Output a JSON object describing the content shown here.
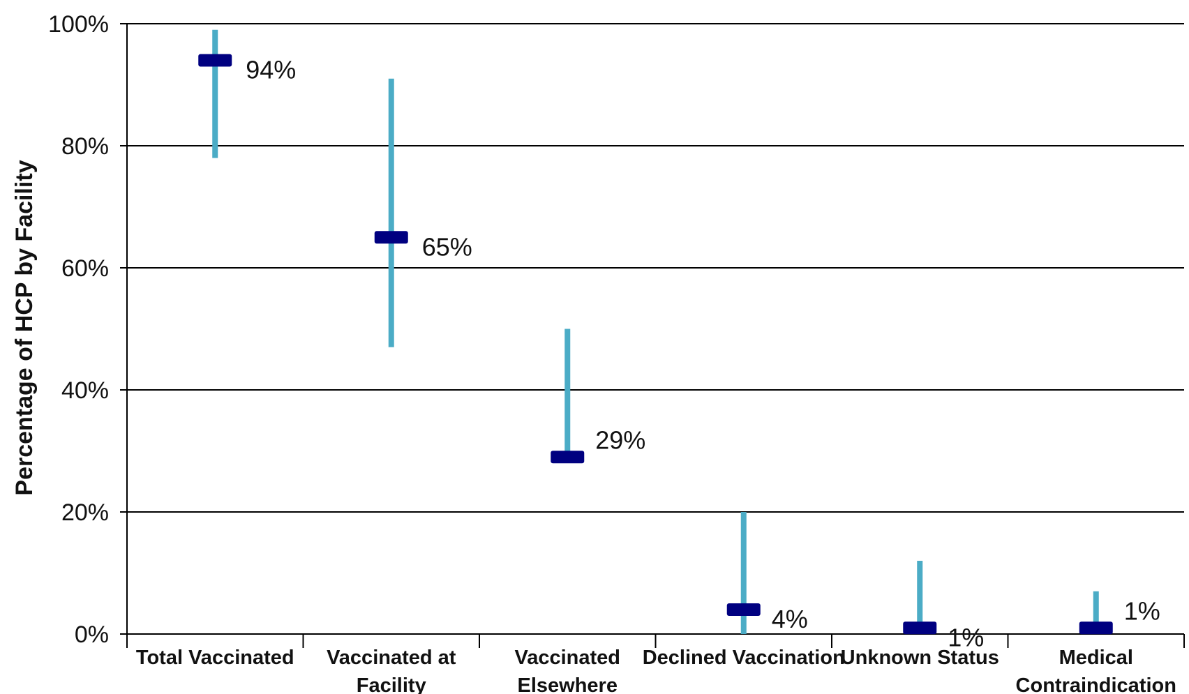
{
  "chart_data": {
    "type": "range",
    "ylabel": "Percentage of HCP by Facility",
    "ylim": [
      0,
      100
    ],
    "yticks": [
      "0%",
      "20%",
      "40%",
      "60%",
      "80%",
      "100%"
    ],
    "yticks_values": [
      0,
      20,
      40,
      60,
      80,
      100
    ],
    "grid": true,
    "categories": [
      [
        "Total Vaccinated"
      ],
      [
        "Vaccinated at",
        "Facility"
      ],
      [
        "Vaccinated",
        "Elsewhere"
      ],
      [
        "Declined Vaccination"
      ],
      [
        "Unknown Status"
      ],
      [
        "Medical",
        "Contraindication"
      ]
    ],
    "values": [
      94,
      65,
      29,
      4,
      1,
      1
    ],
    "value_labels": [
      "94%",
      "65%",
      "29%",
      "4%",
      "1%",
      "1%"
    ],
    "range_low": [
      78,
      47,
      28,
      0,
      0,
      0
    ],
    "range_high": [
      99,
      91,
      50,
      20,
      12,
      7
    ],
    "colors": {
      "range_bar": "#4BACC6",
      "marker": "#000080",
      "grid": "#000000"
    }
  }
}
